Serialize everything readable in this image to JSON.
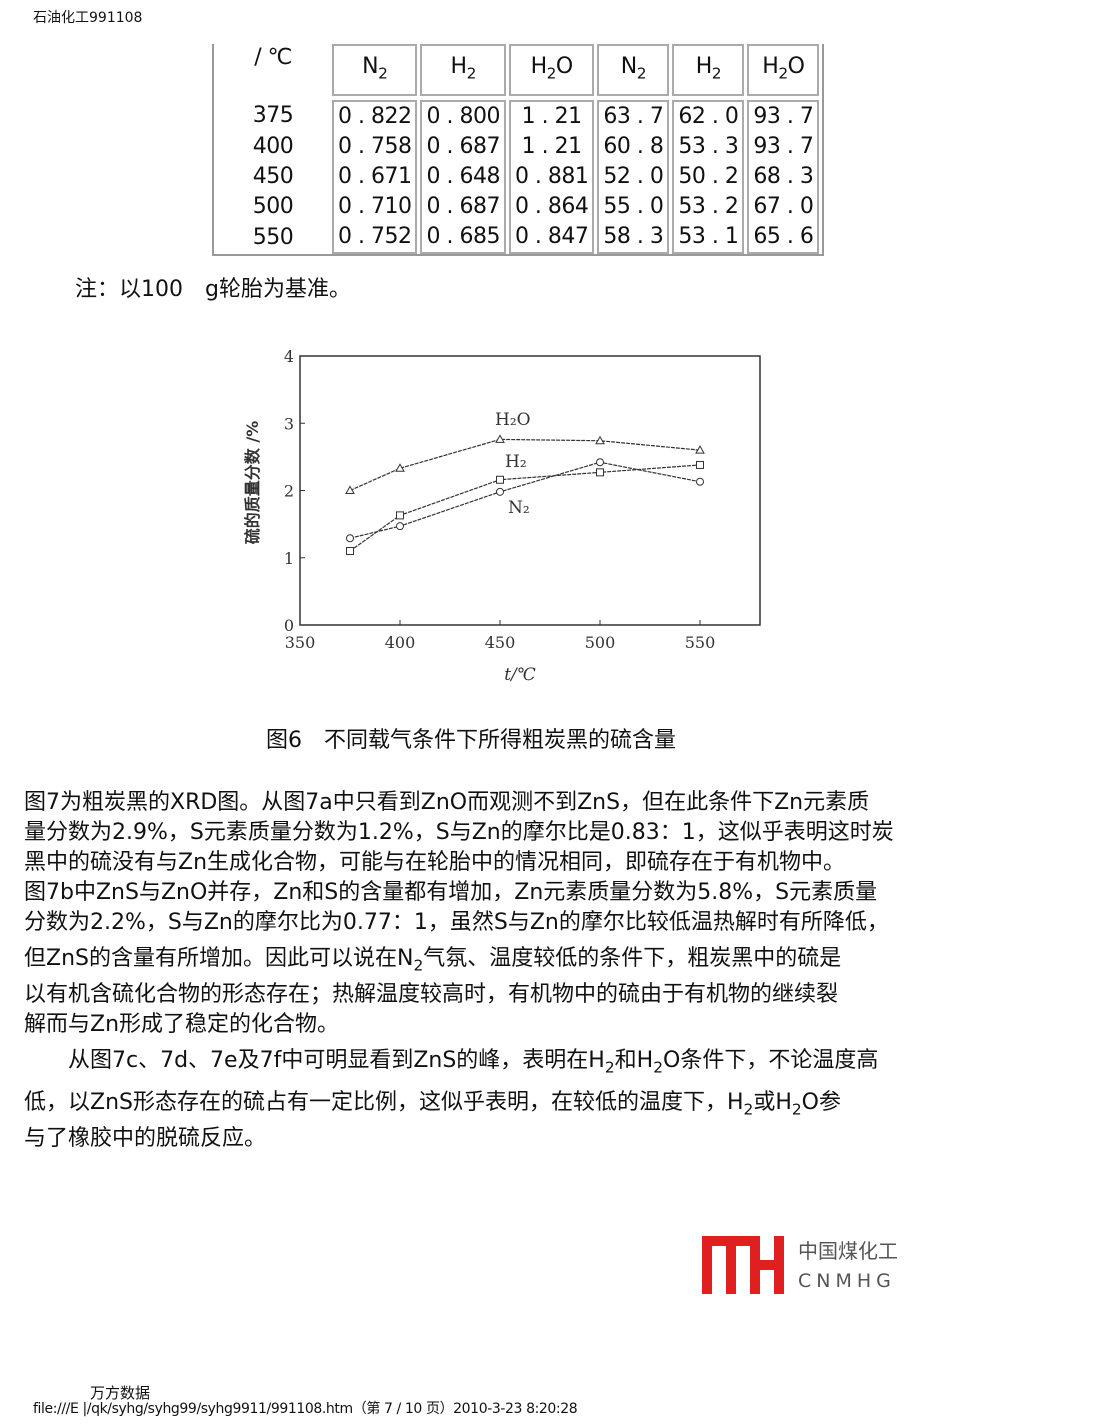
{
  "header": {
    "source": "石油化工991108"
  },
  "table": {
    "header_first": "/ ℃",
    "headers": [
      [
        "N",
        "2",
        ""
      ],
      [
        "H",
        "2",
        ""
      ],
      [
        "H",
        "2",
        "O"
      ],
      [
        "N",
        "2",
        ""
      ],
      [
        "H",
        "2",
        ""
      ],
      [
        "H",
        "2",
        "O"
      ]
    ],
    "rows": [
      [
        "375",
        "0 . 822",
        "0 . 800",
        "1 . 21",
        "63 . 7",
        "62 . 0",
        "93 . 7"
      ],
      [
        "400",
        "0 . 758",
        "0 . 687",
        "1 . 21",
        "60 . 8",
        "53 . 3",
        "93 . 7"
      ],
      [
        "450",
        "0 . 671",
        "0 . 648",
        "0 . 881",
        "52 . 0",
        "50 . 2",
        "68 . 3"
      ],
      [
        "500",
        "0 . 710",
        "0 . 687",
        "0 . 864",
        "55 . 0",
        "53 . 2",
        "67 . 0"
      ],
      [
        "550",
        "0 . 752",
        "0 . 685",
        "0 . 847",
        "58 . 3",
        "53 . 1",
        "65 . 6"
      ]
    ]
  },
  "note": "注：以100　g轮胎为基准。",
  "chart_data": {
    "type": "line",
    "xlabel": "t/℃",
    "ylabel": "硫的质量分数 /%",
    "xlim": [
      350,
      580
    ],
    "ylim": [
      0,
      4
    ],
    "xticks": [
      "350",
      "400",
      "450",
      "500",
      "550"
    ],
    "yticks": [
      "0",
      "1",
      "2",
      "3",
      "4"
    ],
    "x": [
      375,
      400,
      450,
      500,
      550
    ],
    "grid": false,
    "series": [
      {
        "name": "H₂O",
        "marker": "triangle",
        "values": [
          2.0,
          2.33,
          2.76,
          2.74,
          2.6
        ]
      },
      {
        "name": "H₂",
        "marker": "square",
        "values": [
          1.1,
          1.63,
          2.16,
          2.27,
          2.38
        ]
      },
      {
        "name": "N₂",
        "marker": "circle",
        "values": [
          1.29,
          1.47,
          1.98,
          2.42,
          2.13
        ]
      }
    ]
  },
  "caption": "图6　不同载气条件下所得粗炭黑的硫含量",
  "body_lines": [
    [
      {
        "t": "图7为粗炭黑的XRD图。从图7a中只看到ZnO而观测不到ZnS，但在此条件下Zn元素质"
      }
    ],
    [
      {
        "t": "量分数为2.9%，S元素质量分数为1.2%，S与Zn的摩尔比是0.83：1，这似乎表明这时炭"
      }
    ],
    [
      {
        "t": "黑中的硫没有与Zn生成化合物，可能与在轮胎中的情况相同，即硫存在于有机物中。"
      }
    ],
    [
      {
        "t": "图7b中ZnS与ZnO并存，Zn和S的含量都有增加，Zn元素质量分数为5.8%，S元素质量"
      }
    ],
    [
      {
        "t": "分数为2.2%，S与Zn的摩尔比为0.77：1，虽然S与Zn的摩尔比较低温热解时有所降低，"
      }
    ],
    [
      {
        "t": "但ZnS的含量有所增加。因此可以说在N"
      },
      {
        "t": "2",
        "sub": true
      },
      {
        "t": "气氛、温度较低的条件下，粗炭黑中的硫是"
      }
    ],
    [
      {
        "t": "以有机含硫化合物的形态存在；热解温度较高时，有机物中的硫由于有机物的继续裂"
      }
    ],
    [
      {
        "t": "解而与Zn形成了稳定的化合物。"
      }
    ],
    [
      {
        "t": "　　从图7c、7d、7e及7f中可明显看到ZnS的峰，表明在H"
      },
      {
        "t": "2",
        "sub": true
      },
      {
        "t": "和H"
      },
      {
        "t": "2",
        "sub": true
      },
      {
        "t": "O条件下，不论温度高"
      }
    ],
    [
      {
        "t": "低，以ZnS形态存在的硫占有一定比例，这似乎表明，在较低的温度下，H"
      },
      {
        "t": "2",
        "sub": true
      },
      {
        "t": "或H"
      },
      {
        "t": "2",
        "sub": true
      },
      {
        "t": "O参"
      }
    ],
    [
      {
        "t": "与了橡胶中的脱硫反应。"
      }
    ]
  ],
  "logo": {
    "cn": "中国煤化工",
    "en": "CNMHG",
    "color": "#e02020"
  },
  "watermark": "万方数据",
  "footer": "file:///E |/qk/syhg/syhg99/syhg9911/991108.htm（第 7 / 10 页）2010-3-23 8:20:28"
}
